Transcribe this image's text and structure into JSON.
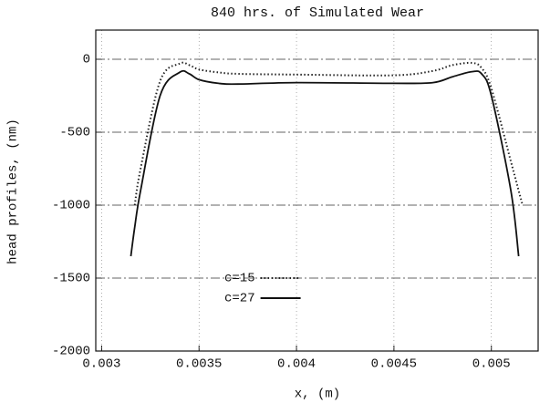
{
  "chart_data": {
    "type": "line",
    "title": "840 hrs. of Simulated Wear",
    "xlabel": "x, (m)",
    "ylabel": "head profiles, (nm)",
    "x": [
      0.00315,
      0.00317,
      0.0032,
      0.0033,
      0.0034,
      0.00345,
      0.0035,
      0.0036,
      0.0037,
      0.004,
      0.0045,
      0.0047,
      0.0048,
      0.0049,
      0.00495,
      0.005,
      0.0051,
      0.00514,
      0.00516
    ],
    "series": [
      {
        "name": "c=15",
        "color": "#222222",
        "style": "dotted",
        "values": [
          null,
          -1000,
          -750,
          -150,
          -30,
          -40,
          -70,
          -90,
          -100,
          -105,
          -110,
          -80,
          -40,
          -25,
          -60,
          -200,
          -700,
          -900,
          -1000
        ]
      },
      {
        "name": "c=27",
        "color": "#111111",
        "style": "solid",
        "values": [
          -1350,
          -1150,
          -900,
          -250,
          -90,
          -100,
          -140,
          -165,
          -170,
          -160,
          -165,
          -160,
          -120,
          -85,
          -100,
          -250,
          -900,
          -1350,
          null
        ]
      }
    ],
    "xlim": [
      0.00297,
      0.00524
    ],
    "ylim": [
      -2000,
      200
    ],
    "xticks": [
      0.003,
      0.0035,
      0.004,
      0.0045,
      0.005
    ],
    "yticks": [
      0,
      -500,
      -1000,
      -1500,
      -2000
    ],
    "grid": true,
    "legend": "lower center"
  }
}
